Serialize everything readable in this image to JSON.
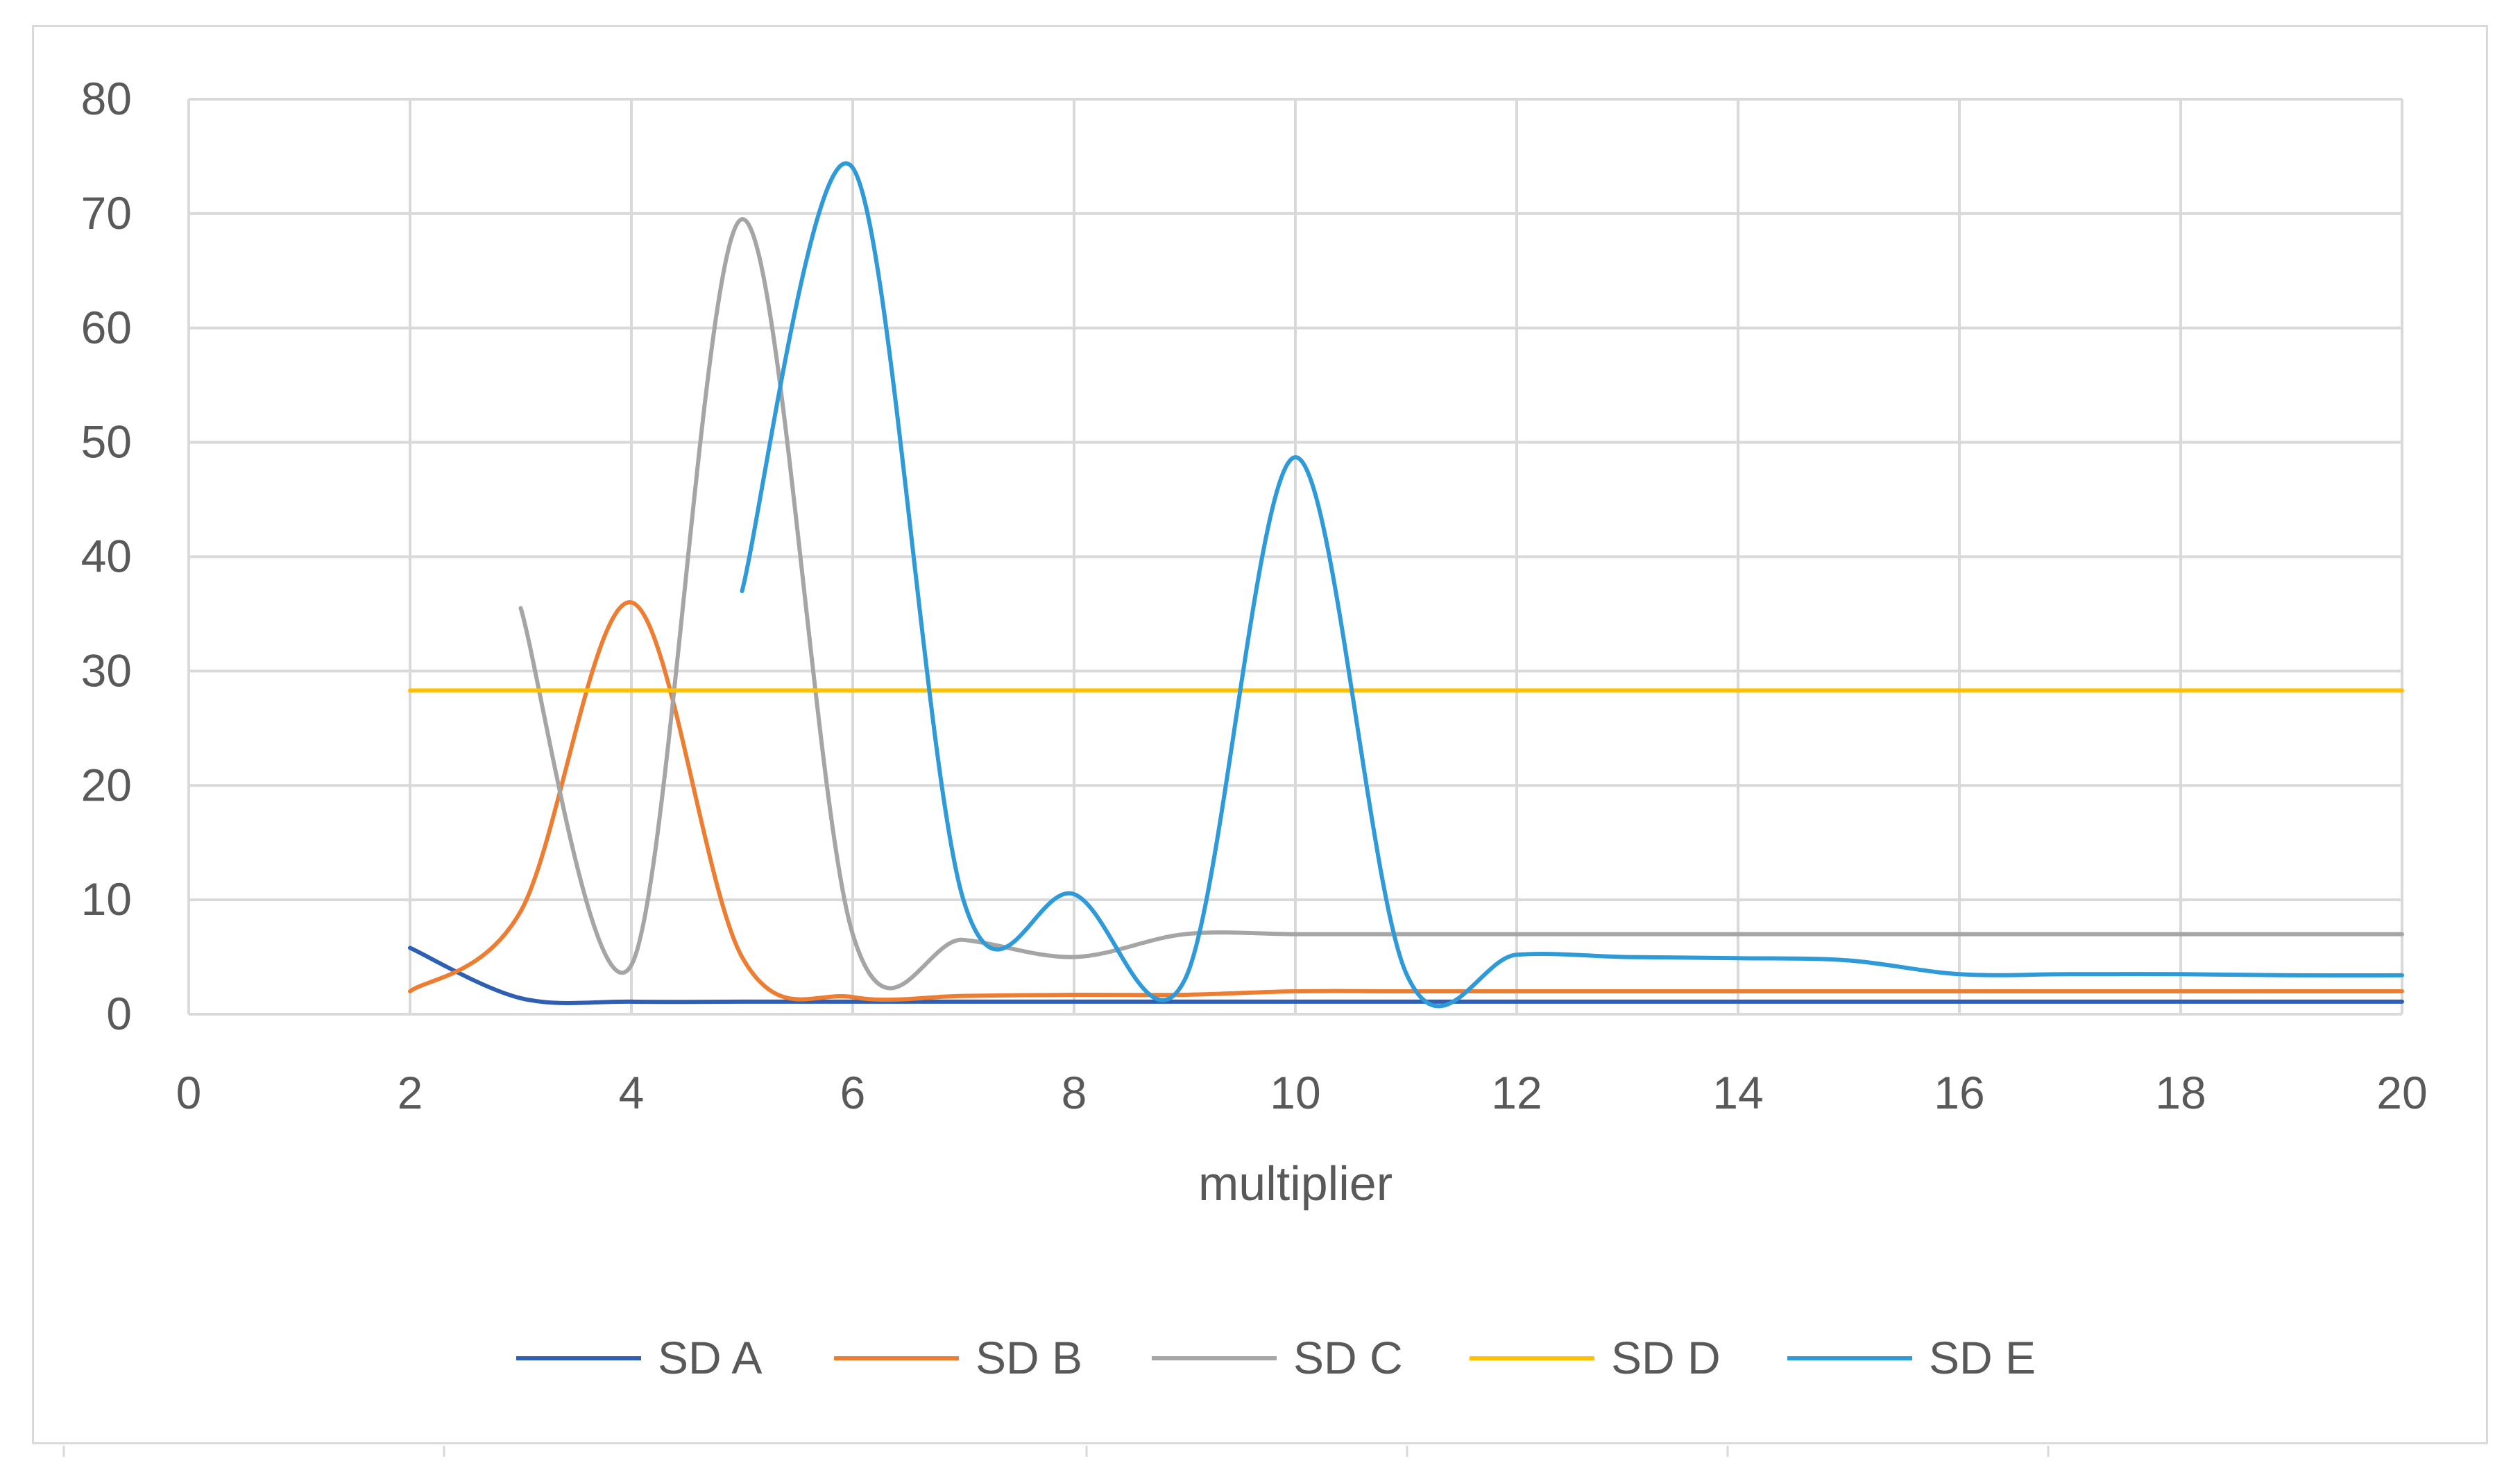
{
  "chart_data": {
    "type": "line",
    "title": "",
    "xlabel": "multiplier",
    "ylabel": "",
    "xlim": [
      0,
      20
    ],
    "ylim": [
      0,
      80
    ],
    "x_ticks": [
      0,
      2,
      4,
      6,
      8,
      10,
      12,
      14,
      16,
      18,
      20
    ],
    "y_ticks": [
      0,
      10,
      20,
      30,
      40,
      50,
      60,
      70,
      80
    ],
    "grid": true,
    "smooth": true,
    "legend_position": "bottom",
    "series": [
      {
        "name": "SD A",
        "color": "#2e5fb3",
        "points": [
          [
            2,
            5.8
          ],
          [
            3,
            1.4
          ],
          [
            4,
            1.1
          ],
          [
            5,
            1.1
          ],
          [
            6,
            1.1
          ],
          [
            7,
            1.1
          ],
          [
            8,
            1.1
          ],
          [
            9,
            1.1
          ],
          [
            10,
            1.1
          ],
          [
            11,
            1.1
          ],
          [
            12,
            1.1
          ],
          [
            13,
            1.1
          ],
          [
            14,
            1.1
          ],
          [
            15,
            1.1
          ],
          [
            16,
            1.1
          ],
          [
            17,
            1.1
          ],
          [
            18,
            1.1
          ],
          [
            19,
            1.1
          ],
          [
            20,
            1.1
          ]
        ]
      },
      {
        "name": "SD B",
        "color": "#ed7d31",
        "points": [
          [
            2,
            2.0
          ],
          [
            3,
            9.0
          ],
          [
            4,
            36.0
          ],
          [
            5,
            5.0
          ],
          [
            6,
            1.5
          ],
          [
            7,
            1.6
          ],
          [
            8,
            1.7
          ],
          [
            9,
            1.7
          ],
          [
            10,
            2.0
          ],
          [
            11,
            2.0
          ],
          [
            12,
            2.0
          ],
          [
            13,
            2.0
          ],
          [
            14,
            2.0
          ],
          [
            15,
            2.0
          ],
          [
            16,
            2.0
          ],
          [
            17,
            2.0
          ],
          [
            18,
            2.0
          ],
          [
            19,
            2.0
          ],
          [
            20,
            2.0
          ]
        ]
      },
      {
        "name": "SD C",
        "color": "#a5a5a5",
        "points": [
          [
            3,
            35.5
          ],
          [
            4,
            4.3
          ],
          [
            5,
            69.5
          ],
          [
            6,
            7.0
          ],
          [
            7,
            6.5
          ],
          [
            8,
            5.0
          ],
          [
            9,
            7.0
          ],
          [
            10,
            7.0
          ],
          [
            11,
            7.0
          ],
          [
            12,
            7.0
          ],
          [
            13,
            7.0
          ],
          [
            14,
            7.0
          ],
          [
            15,
            7.0
          ],
          [
            16,
            7.0
          ],
          [
            17,
            7.0
          ],
          [
            18,
            7.0
          ],
          [
            19,
            7.0
          ],
          [
            20,
            7.0
          ]
        ]
      },
      {
        "name": "SD D",
        "color": "#ffc000",
        "points": [
          [
            2,
            28.3
          ],
          [
            4,
            28.3
          ],
          [
            6,
            28.3
          ],
          [
            8,
            28.3
          ],
          [
            10,
            28.3
          ],
          [
            12,
            28.3
          ],
          [
            14,
            28.3
          ],
          [
            16,
            28.3
          ],
          [
            18,
            28.3
          ],
          [
            20,
            28.3
          ]
        ]
      },
      {
        "name": "SD E",
        "color": "#2e9ad8",
        "points": [
          [
            5,
            37.0
          ],
          [
            6,
            74.0
          ],
          [
            7,
            10.0
          ],
          [
            8,
            10.5
          ],
          [
            9,
            3.0
          ],
          [
            10,
            48.7
          ],
          [
            11,
            3.6
          ],
          [
            12,
            5.2
          ],
          [
            13,
            5.0
          ],
          [
            14,
            4.9
          ],
          [
            15,
            4.7
          ],
          [
            16,
            3.5
          ],
          [
            17,
            3.5
          ],
          [
            18,
            3.5
          ],
          [
            19,
            3.4
          ],
          [
            20,
            3.4
          ]
        ]
      }
    ]
  }
}
